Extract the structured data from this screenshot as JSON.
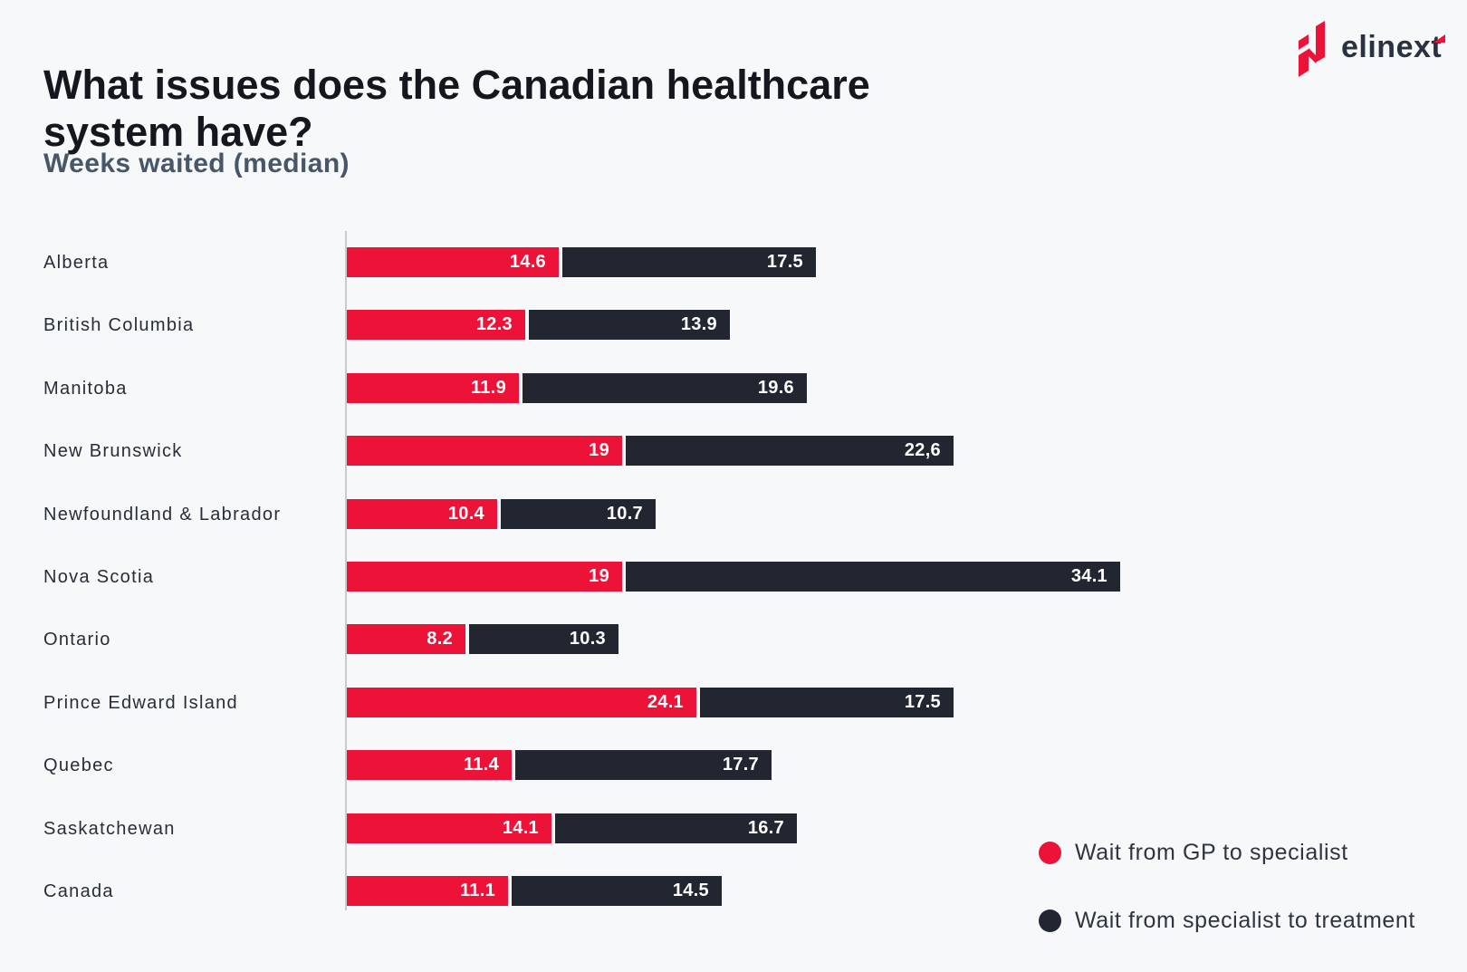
{
  "header": {
    "title": "What issues does the Canadian healthcare system have?",
    "subtitle": "Weeks waited (median)",
    "logo_text": "elinext"
  },
  "colors": {
    "background": "#F7F8FA",
    "gp_red": "#ED1238",
    "treatment_dark": "#222631",
    "title_text": "#14171D",
    "subtitle_text": "#475669",
    "category_label_text": "#272E38",
    "value_label_text": "#FFFFFF",
    "axis_line": "#C9CCCF"
  },
  "chart_data": {
    "type": "bar",
    "orientation": "horizontal",
    "stacked": true,
    "grid": false,
    "unit": "weeks",
    "title": "What issues does the Canadian healthcare system have?",
    "subtitle": "Weeks waited (median)",
    "legend_position": "bottom-right",
    "categories": [
      "Alberta",
      "British Columbia",
      "Manitoba",
      "New Brunswick",
      "Newfoundland & Labrador",
      "Nova Scotia",
      "Ontario",
      "Prince Edward Island",
      "Quebec",
      "Saskatchewan",
      "Canada"
    ],
    "series": [
      {
        "name": "Wait from GP to specialist",
        "color": "#ED1238",
        "values": [
          14.6,
          12.3,
          11.9,
          19,
          10.4,
          19,
          8.2,
          24.1,
          11.4,
          14.1,
          11.1
        ],
        "display_labels": [
          "14.6",
          "12.3",
          "11.9",
          "19",
          "10.4",
          "19",
          "8.2",
          "24.1",
          "11.4",
          "14.1",
          "11.1"
        ]
      },
      {
        "name": "Wait from specialist to treatment",
        "color": "#222631",
        "values": [
          17.5,
          13.9,
          19.6,
          22.6,
          10.7,
          34.1,
          10.3,
          17.5,
          17.7,
          16.7,
          14.5
        ],
        "display_labels": [
          "17.5",
          "13.9",
          "19.6",
          "22,6",
          "10.7",
          "34.1",
          "10.3",
          "17.5",
          "17.7",
          "16.7",
          "14.5"
        ]
      }
    ]
  },
  "legend": {
    "items": [
      {
        "label": "Wait from GP to specialist",
        "color": "#ED1238"
      },
      {
        "label": "Wait from specialist to treatment",
        "color": "#222631"
      }
    ]
  }
}
